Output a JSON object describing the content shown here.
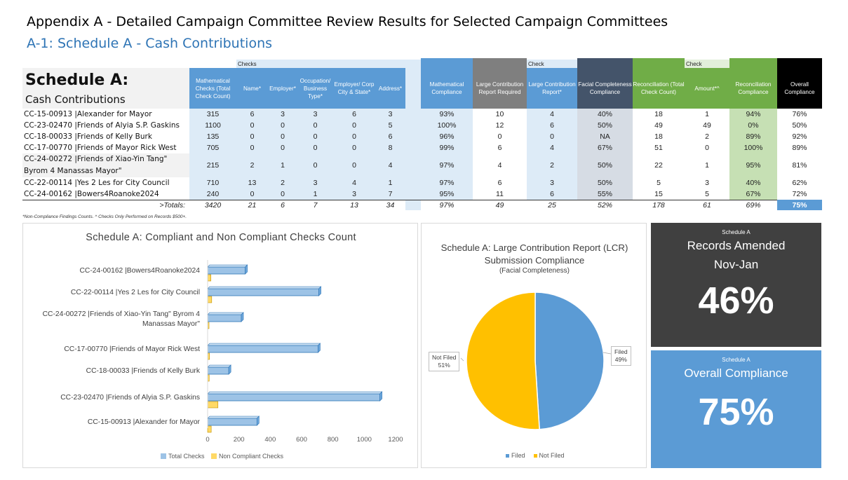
{
  "header": {
    "title": "Appendix A - Detailed Campaign Committee Review Results for Selected Campaign Committees",
    "subtitle": "A-1: Schedule A - Cash Contributions"
  },
  "table": {
    "title_big": "Schedule A:",
    "title_sub": "Cash Contributions",
    "group_checks": "Checks",
    "group_check1": "Check",
    "group_check2": "Check",
    "columns": [
      "Mathematical Checks (Total Check Count)",
      "Name*",
      "Employer*",
      "Occupation/ Business Type*",
      "Employer/ Corp City & State*",
      "Address*",
      "Mathematical Compliance",
      "Large Contribution Report Required",
      "Large Contribution Report*",
      "Facial Completeness Compliance",
      "Reconciliation (Total Check Count)",
      "Amount*^",
      "Reconciliation Compliance",
      "Overall Compliance"
    ],
    "rows": [
      {
        "name": "CC-15-00913 |Alexander for Mayor",
        "v": [
          "315",
          "6",
          "3",
          "3",
          "6",
          "3",
          "93%",
          "10",
          "4",
          "40%",
          "18",
          "1",
          "94%",
          "76%"
        ]
      },
      {
        "name": "CC-23-02470 |Friends of Alyia S.P. Gaskins",
        "v": [
          "1100",
          "0",
          "0",
          "0",
          "0",
          "5",
          "100%",
          "12",
          "6",
          "50%",
          "49",
          "49",
          "0%",
          "50%"
        ]
      },
      {
        "name": "CC-18-00033 |Friends of Kelly Burk",
        "v": [
          "135",
          "0",
          "0",
          "0",
          "0",
          "6",
          "96%",
          "0",
          "0",
          "NA",
          "18",
          "2",
          "89%",
          "92%"
        ]
      },
      {
        "name": "CC-17-00770 |Friends of Mayor Rick West",
        "v": [
          "705",
          "0",
          "0",
          "0",
          "0",
          "8",
          "99%",
          "6",
          "4",
          "67%",
          "51",
          "0",
          "100%",
          "89%"
        ]
      },
      {
        "name": "CC-24-00272 |Friends of Xiao-Yin Tang\"",
        "name2": "Byrom 4 Manassas Mayor\"",
        "v": [
          "215",
          "2",
          "1",
          "0",
          "0",
          "4",
          "97%",
          "4",
          "2",
          "50%",
          "22",
          "1",
          "95%",
          "81%"
        ]
      },
      {
        "name": "CC-22-00114 |Yes 2 Les for City Council",
        "v": [
          "710",
          "13",
          "2",
          "3",
          "4",
          "1",
          "97%",
          "6",
          "3",
          "50%",
          "5",
          "3",
          "40%",
          "62%"
        ]
      },
      {
        "name": "CC-24-00162 |Bowers4Roanoke2024",
        "v": [
          "240",
          "0",
          "0",
          "1",
          "3",
          "7",
          "95%",
          "11",
          "6",
          "55%",
          "15",
          "5",
          "67%",
          "72%"
        ]
      }
    ],
    "totals_label": ">Totals:",
    "totals": [
      "3420",
      "21",
      "6",
      "7",
      "13",
      "34",
      "97%",
      "49",
      "25",
      "52%",
      "178",
      "61",
      "69%",
      "75%"
    ],
    "footnote": "*Non-Compliance Findings Counts. ^ Checks Only Performed on Records $500+."
  },
  "chart_data": [
    {
      "type": "bar",
      "title": "Schedule A: Compliant and Non Compliant Checks Count",
      "categories": [
        "CC-24-00162 |Bowers4Roanoke2024",
        "CC-22-00114 |Yes 2 Les for City Council",
        "CC-24-00272 |Friends of Xiao-Yin Tang\" Byrom 4 Manassas Mayor\"",
        "CC-17-00770 |Friends of Mayor Rick West",
        "CC-18-00033 |Friends of Kelly Burk",
        "CC-23-02470 |Friends of Alyia S.P. Gaskins",
        "CC-15-00913 |Alexander for Mayor"
      ],
      "series": [
        {
          "name": "Total Checks",
          "values": [
            240,
            710,
            215,
            705,
            135,
            1100,
            315
          ],
          "color": "#9dc3e6"
        },
        {
          "name": "Non Compliant Checks",
          "values": [
            21,
            26,
            7,
            12,
            10,
            66,
            23
          ],
          "color": "#ffd966"
        }
      ],
      "xticks": [
        "0",
        "200",
        "400",
        "600",
        "800",
        "1000",
        "1200"
      ],
      "xlim": [
        0,
        1200
      ]
    },
    {
      "type": "pie",
      "title": "Schedule A: Large Contribution Report (LCR) Submission Compliance",
      "subtitle": "(Facial Completeness)",
      "slices": [
        {
          "name": "Filed",
          "value": 49,
          "label": "49%",
          "color": "#5b9bd5"
        },
        {
          "name": "Not Filed",
          "value": 51,
          "label": "51%",
          "color": "#ffc000"
        }
      ]
    }
  ],
  "kpis": {
    "amended": {
      "small": "Schedule A",
      "label1": "Records Amended",
      "label2": "Nov-Jan",
      "value": "46%"
    },
    "overall": {
      "small": "Schedule A",
      "label1": "Overall Compliance",
      "value": "75%"
    }
  }
}
